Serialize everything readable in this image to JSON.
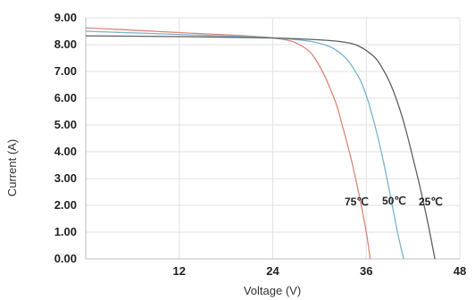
{
  "chart_data": {
    "type": "line",
    "title": "",
    "xlabel": "Voltage (V)",
    "ylabel": "Current (A)",
    "xlim": [
      0,
      48
    ],
    "ylim": [
      0,
      9
    ],
    "xticks": [
      "12",
      "24",
      "36",
      "48"
    ],
    "yticks": [
      "0.00",
      "1.00",
      "2.00",
      "3.00",
      "4.00",
      "5.00",
      "6.00",
      "7.00",
      "8.00",
      "9.00"
    ],
    "grid": true,
    "colors": {
      "75℃": "#d98878",
      "50℃": "#79b3cf",
      "25℃": "#5f5f5f"
    },
    "series": [
      {
        "name": "75℃",
        "x": [
          0,
          12,
          24,
          28,
          30,
          32,
          33,
          34,
          35,
          36,
          36.5
        ],
        "y": [
          8.63,
          8.45,
          8.25,
          7.9,
          7.2,
          5.9,
          4.9,
          3.8,
          2.5,
          1.0,
          0.0
        ]
      },
      {
        "name": "50℃",
        "x": [
          0,
          12,
          24,
          30,
          33,
          35,
          36,
          37,
          38,
          39,
          40,
          40.8
        ],
        "y": [
          8.5,
          8.38,
          8.25,
          8.05,
          7.6,
          6.8,
          6.1,
          5.1,
          3.9,
          2.5,
          1.0,
          0.0
        ]
      },
      {
        "name": "25℃",
        "x": [
          0,
          12,
          24,
          30,
          33,
          35,
          37,
          38,
          39,
          40,
          41,
          42,
          43,
          44,
          44.8
        ],
        "y": [
          8.33,
          8.3,
          8.25,
          8.18,
          8.1,
          7.95,
          7.55,
          7.15,
          6.6,
          5.85,
          4.9,
          3.75,
          2.55,
          1.2,
          0.0
        ]
      }
    ]
  }
}
